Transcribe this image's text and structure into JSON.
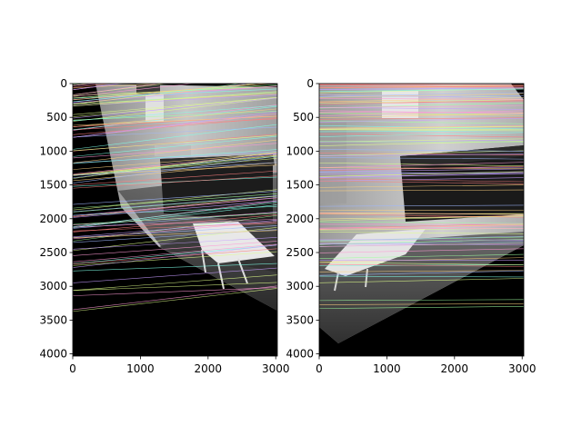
{
  "figure": {
    "panels": [
      {
        "name": "left",
        "xticks": [
          "0",
          "1000",
          "2000",
          "3000"
        ],
        "yticks": [
          "0",
          "500",
          "1000",
          "1500",
          "2000",
          "2500",
          "3000",
          "3500",
          "4000"
        ],
        "xlim": [
          0,
          3024
        ],
        "ylim": [
          4032,
          0
        ]
      },
      {
        "name": "right",
        "xticks": [
          "0",
          "1000",
          "2000",
          "3000"
        ],
        "yticks": [
          "0",
          "500",
          "1000",
          "1500",
          "2000",
          "2500",
          "3000",
          "3500",
          "4000"
        ],
        "xlim": [
          0,
          3024
        ],
        "ylim": [
          4032,
          0
        ]
      }
    ]
  },
  "colors": {
    "image_background": "#000000",
    "frame": "#000000"
  }
}
